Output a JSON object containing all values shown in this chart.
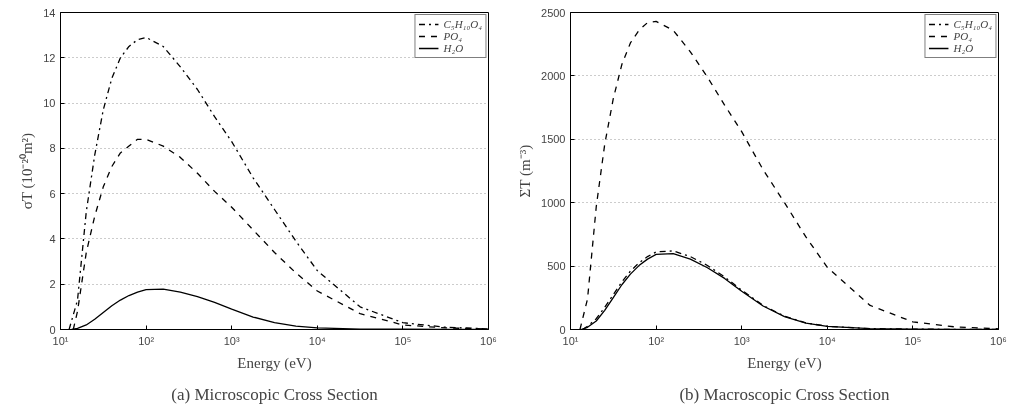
{
  "chart_data": [
    {
      "type": "line",
      "xlabel": "Energy (eV)",
      "ylabel": "σT (10⁻²⁰m²)",
      "annotations": [
        "(a) Microscopic Cross Section"
      ],
      "log": "x",
      "grid": "y",
      "legend": "top right",
      "xlim": [
        10,
        1000000
      ],
      "ylim": [
        0,
        14
      ],
      "xticks": [
        {
          "value": 10,
          "label": "10¹"
        },
        {
          "value": 100,
          "label": "10²"
        },
        {
          "value": 1000,
          "label": "10³"
        },
        {
          "value": 10000,
          "label": "10⁴"
        },
        {
          "value": 100000,
          "label": "10⁵"
        },
        {
          "value": 1000000,
          "label": "10⁶"
        }
      ],
      "yticks": [
        0,
        2,
        4,
        6,
        8,
        10,
        12,
        14
      ],
      "series": [
        {
          "name": "C₅H₁₀O₄",
          "color": "#000000",
          "line_style": "dashdot",
          "x": [
            12.6,
            15.8,
            20,
            25.1,
            31.6,
            39.8,
            50.1,
            63.1,
            79.4,
            100,
            158.5,
            251.2,
            398.1,
            631,
            1000,
            1778,
            3162,
            5623,
            10000,
            31623,
            100000,
            316228,
            1000000
          ],
          "values": [
            0,
            1.3,
            5.2,
            7.7,
            9.7,
            11.1,
            12.0,
            12.5,
            12.8,
            12.9,
            12.5,
            11.6,
            10.6,
            9.4,
            8.3,
            6.7,
            5.3,
            3.9,
            2.6,
            1.0,
            0.3,
            0.1,
            0.03
          ]
        },
        {
          "name": "PO₄",
          "color": "#000000",
          "line_style": "dashed",
          "x": [
            14.1,
            15.8,
            20,
            25.1,
            31.6,
            39.8,
            50.1,
            63.1,
            79.4,
            100,
            158.5,
            251.2,
            398.1,
            631,
            1000,
            1778,
            3162,
            5623,
            10000,
            31623,
            100000,
            316228,
            1000000
          ],
          "values": [
            0,
            0.8,
            3.4,
            5.0,
            6.3,
            7.2,
            7.8,
            8.1,
            8.4,
            8.4,
            8.1,
            7.6,
            6.9,
            6.1,
            5.4,
            4.4,
            3.4,
            2.5,
            1.7,
            0.7,
            0.2,
            0.07,
            0.02
          ]
        },
        {
          "name": "H₂O",
          "color": "#000000",
          "line_style": "solid",
          "x": [
            13.5,
            15.8,
            20,
            25.1,
            31.6,
            39.8,
            50.1,
            63.1,
            79.4,
            100,
            158.5,
            251.2,
            398.1,
            631,
            1000,
            1778,
            3162,
            5623,
            10000,
            31623,
            100000,
            316228,
            1000000
          ],
          "values": [
            0,
            0.05,
            0.2,
            0.45,
            0.75,
            1.05,
            1.3,
            1.5,
            1.65,
            1.76,
            1.78,
            1.65,
            1.45,
            1.2,
            0.9,
            0.55,
            0.3,
            0.15,
            0.07,
            0.02,
            0.01,
            0.005,
            0.002
          ]
        }
      ]
    },
    {
      "type": "line",
      "xlabel": "Energy (eV)",
      "ylabel": "ΣT (m⁻³)",
      "annotations": [
        "(b) Macroscopic Cross Section"
      ],
      "log": "x",
      "grid": "y",
      "legend": "top right",
      "xlim": [
        10,
        1000000
      ],
      "ylim": [
        0,
        2500
      ],
      "xticks": [
        {
          "value": 10,
          "label": "10¹"
        },
        {
          "value": 100,
          "label": "10²"
        },
        {
          "value": 1000,
          "label": "10³"
        },
        {
          "value": 10000,
          "label": "10⁴"
        },
        {
          "value": 100000,
          "label": "10⁵"
        },
        {
          "value": 1000000,
          "label": "10⁶"
        }
      ],
      "yticks": [
        0,
        500,
        1000,
        1500,
        2000,
        2500
      ],
      "series": [
        {
          "name": "C₅H₁₀O₄",
          "color": "#000000",
          "line_style": "dashdot",
          "x": [
            13.8,
            15.8,
            20,
            25.1,
            31.6,
            39.8,
            50.1,
            63.1,
            79.4,
            100,
            158.5,
            251.2,
            398.1,
            631,
            1000,
            1778,
            3162,
            5623,
            10000,
            31623,
            100000,
            316228,
            1000000
          ],
          "values": [
            0,
            25,
            85,
            175,
            275,
            375,
            460,
            525,
            575,
            612,
            620,
            575,
            505,
            415,
            310,
            190,
            105,
            52,
            25,
            7,
            3,
            1,
            0.5
          ]
        },
        {
          "name": "PO₄",
          "color": "#000000",
          "line_style": "dashed",
          "x": [
            12.9,
            15.8,
            20,
            25.1,
            31.6,
            39.8,
            50.1,
            63.1,
            79.4,
            100,
            158.5,
            251.2,
            398.1,
            631,
            1000,
            1778,
            3162,
            5623,
            10000,
            31623,
            100000,
            316228,
            1000000
          ],
          "values": [
            0,
            240,
            970,
            1460,
            1820,
            2090,
            2260,
            2360,
            2420,
            2430,
            2360,
            2190,
            1990,
            1770,
            1560,
            1260,
            1000,
            730,
            490,
            190,
            60,
            20,
            5
          ]
        },
        {
          "name": "H₂O",
          "color": "#000000",
          "line_style": "solid",
          "x": [
            13.3,
            15.8,
            20,
            25.1,
            31.6,
            39.8,
            50.1,
            63.1,
            79.4,
            100,
            158.5,
            251.2,
            398.1,
            631,
            1000,
            1778,
            3162,
            5623,
            10000,
            31623,
            100000,
            316228,
            1000000
          ],
          "values": [
            0,
            17,
            67,
            151,
            252,
            353,
            437,
            504,
            555,
            592,
            598,
            555,
            487,
            403,
            302,
            185,
            101,
            50,
            24,
            7,
            3,
            0.8,
            0.2
          ]
        }
      ]
    }
  ]
}
